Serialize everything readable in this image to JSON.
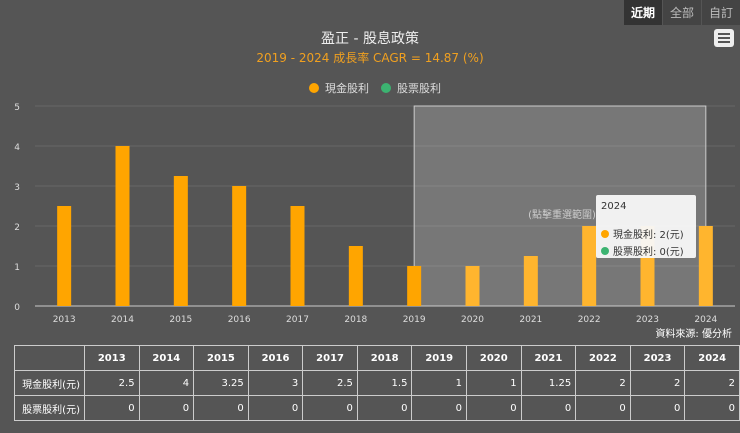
{
  "range_buttons": [
    "近期",
    "全部",
    "自訂"
  ],
  "title": "盈正 - 股息政策",
  "subtitle": "2019 - 2024 成長率 CAGR = 14.87 (%)",
  "reset_zoom": "(點擊重選範圍)",
  "source": "資料來源: 優分析",
  "tooltip": {
    "year": "2024",
    "cash": "現金股利: 2(元)",
    "stock": "股票股利: 0(元)"
  },
  "chart_data": {
    "type": "bar",
    "categories": [
      "2013",
      "2014",
      "2015",
      "2016",
      "2017",
      "2018",
      "2019",
      "2020",
      "2021",
      "2022",
      "2023",
      "2024"
    ],
    "series": [
      {
        "name": "現金股利",
        "color": "#ffa500",
        "values": [
          2.5,
          4,
          3.25,
          3,
          2.5,
          1.5,
          1,
          1,
          1.25,
          2,
          2,
          2
        ]
      },
      {
        "name": "股票股利",
        "color": "#3cb371",
        "values": [
          0,
          0,
          0,
          0,
          0,
          0,
          0,
          0,
          0,
          0,
          0,
          0
        ]
      }
    ],
    "ylim": [
      0,
      5
    ],
    "yticks": [
      "0",
      "1",
      "2",
      "3",
      "4",
      "5"
    ],
    "highlight_range": [
      "2019",
      "2024"
    ],
    "legend": "top"
  },
  "table": {
    "header": [
      "",
      "2013",
      "2014",
      "2015",
      "2016",
      "2017",
      "2018",
      "2019",
      "2020",
      "2021",
      "2022",
      "2023",
      "2024"
    ],
    "rows": [
      [
        "現金股利(元)",
        "2.5",
        "4",
        "3.25",
        "3",
        "2.5",
        "1.5",
        "1",
        "1",
        "1.25",
        "2",
        "2",
        "2"
      ],
      [
        "股票股利(元)",
        "0",
        "0",
        "0",
        "0",
        "0",
        "0",
        "0",
        "0",
        "0",
        "0",
        "0",
        "0"
      ]
    ]
  }
}
